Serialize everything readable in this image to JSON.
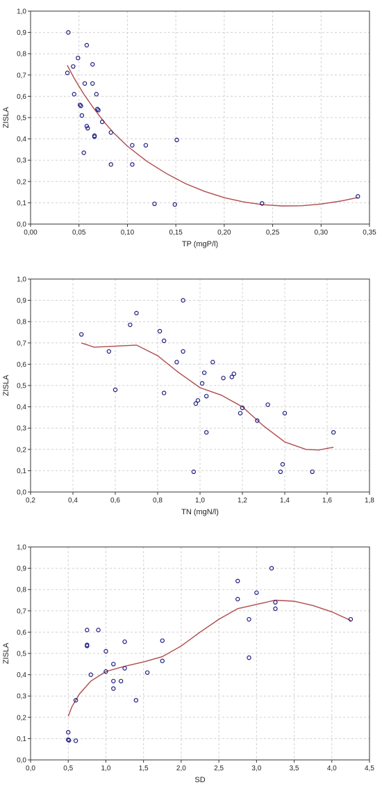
{
  "chart_data": [
    {
      "type": "scatter",
      "title": "",
      "xlabel": "TP (mgP/l)",
      "ylabel": "ZISLA",
      "xlim": [
        0.0,
        0.35
      ],
      "ylim": [
        0.0,
        1.0
      ],
      "xticks": [
        "0,00",
        "0,05",
        "0,10",
        "0,15",
        "0,20",
        "0,25",
        "0,30",
        "0,35"
      ],
      "yticks": [
        "0,0",
        "0,1",
        "0,2",
        "0,3",
        "0,4",
        "0,5",
        "0,6",
        "0,7",
        "0,8",
        "0,9",
        "1,0"
      ],
      "grid": true,
      "points": [
        [
          0.039,
          0.9
        ],
        [
          0.058,
          0.84
        ],
        [
          0.049,
          0.78
        ],
        [
          0.044,
          0.74
        ],
        [
          0.038,
          0.71
        ],
        [
          0.064,
          0.75
        ],
        [
          0.056,
          0.66
        ],
        [
          0.064,
          0.66
        ],
        [
          0.045,
          0.61
        ],
        [
          0.068,
          0.61
        ],
        [
          0.051,
          0.56
        ],
        [
          0.052,
          0.555
        ],
        [
          0.069,
          0.54
        ],
        [
          0.07,
          0.535
        ],
        [
          0.053,
          0.51
        ],
        [
          0.074,
          0.48
        ],
        [
          0.058,
          0.46
        ],
        [
          0.059,
          0.45
        ],
        [
          0.083,
          0.43
        ],
        [
          0.066,
          0.415
        ],
        [
          0.066,
          0.41
        ],
        [
          0.055,
          0.335
        ],
        [
          0.105,
          0.37
        ],
        [
          0.119,
          0.37
        ],
        [
          0.151,
          0.395
        ],
        [
          0.083,
          0.28
        ],
        [
          0.105,
          0.28
        ],
        [
          0.128,
          0.095
        ],
        [
          0.149,
          0.092
        ],
        [
          0.239,
          0.097
        ],
        [
          0.338,
          0.13
        ]
      ],
      "fit_line": [
        [
          0.038,
          0.745
        ],
        [
          0.045,
          0.685
        ],
        [
          0.055,
          0.61
        ],
        [
          0.065,
          0.545
        ],
        [
          0.075,
          0.485
        ],
        [
          0.085,
          0.432
        ],
        [
          0.1,
          0.366
        ],
        [
          0.12,
          0.295
        ],
        [
          0.14,
          0.238
        ],
        [
          0.16,
          0.19
        ],
        [
          0.18,
          0.153
        ],
        [
          0.2,
          0.124
        ],
        [
          0.22,
          0.104
        ],
        [
          0.24,
          0.091
        ],
        [
          0.26,
          0.085
        ],
        [
          0.28,
          0.086
        ],
        [
          0.3,
          0.094
        ],
        [
          0.32,
          0.108
        ],
        [
          0.338,
          0.125
        ]
      ]
    },
    {
      "type": "scatter",
      "title": "",
      "xlabel": "TN (mgN/l)",
      "ylabel": "ZISLA",
      "xlim": [
        0.2,
        1.8
      ],
      "ylim": [
        0.0,
        1.0
      ],
      "xticks": [
        "0,2",
        "0,4",
        "0,6",
        "0,8",
        "1,0",
        "1,2",
        "1,4",
        "1,6",
        "1,8"
      ],
      "yticks": [
        "0,0",
        "0,1",
        "0,2",
        "0,3",
        "0,4",
        "0,5",
        "0,6",
        "0,7",
        "0,8",
        "0,9",
        "1,0"
      ],
      "grid": true,
      "points": [
        [
          0.44,
          0.74
        ],
        [
          0.57,
          0.66
        ],
        [
          0.6,
          0.48
        ],
        [
          0.67,
          0.785
        ],
        [
          0.7,
          0.84
        ],
        [
          0.81,
          0.755
        ],
        [
          0.83,
          0.71
        ],
        [
          0.83,
          0.465
        ],
        [
          0.89,
          0.61
        ],
        [
          0.92,
          0.9
        ],
        [
          0.92,
          0.66
        ],
        [
          0.97,
          0.095
        ],
        [
          0.98,
          0.415
        ],
        [
          0.99,
          0.43
        ],
        [
          1.01,
          0.51
        ],
        [
          1.02,
          0.56
        ],
        [
          1.03,
          0.45
        ],
        [
          1.03,
          0.28
        ],
        [
          1.06,
          0.61
        ],
        [
          1.11,
          0.535
        ],
        [
          1.15,
          0.54
        ],
        [
          1.16,
          0.555
        ],
        [
          1.19,
          0.37
        ],
        [
          1.2,
          0.395
        ],
        [
          1.27,
          0.335
        ],
        [
          1.32,
          0.41
        ],
        [
          1.38,
          0.095
        ],
        [
          1.39,
          0.13
        ],
        [
          1.4,
          0.37
        ],
        [
          1.53,
          0.095
        ],
        [
          1.63,
          0.28
        ]
      ],
      "fit_line": [
        [
          0.44,
          0.7
        ],
        [
          0.5,
          0.68
        ],
        [
          0.6,
          0.685
        ],
        [
          0.7,
          0.69
        ],
        [
          0.8,
          0.64
        ],
        [
          0.9,
          0.56
        ],
        [
          1.0,
          0.49
        ],
        [
          1.1,
          0.455
        ],
        [
          1.2,
          0.4
        ],
        [
          1.3,
          0.31
        ],
        [
          1.4,
          0.235
        ],
        [
          1.5,
          0.2
        ],
        [
          1.56,
          0.197
        ],
        [
          1.63,
          0.21
        ]
      ]
    },
    {
      "type": "scatter",
      "title": "",
      "xlabel": "SD",
      "ylabel": "ZISLA",
      "xlim": [
        0.0,
        4.5
      ],
      "ylim": [
        0.0,
        1.0
      ],
      "xticks": [
        "0,0",
        "0,5",
        "1,0",
        "1,5",
        "2,0",
        "2,5",
        "3,0",
        "3,5",
        "4,0",
        "4,5"
      ],
      "yticks": [
        "0,0",
        "0,1",
        "0,2",
        "0,3",
        "0,4",
        "0,5",
        "0,6",
        "0,7",
        "0,8",
        "0,9",
        "1,0"
      ],
      "grid": true,
      "points": [
        [
          0.5,
          0.13
        ],
        [
          0.5,
          0.095
        ],
        [
          0.51,
          0.092
        ],
        [
          0.6,
          0.09
        ],
        [
          0.6,
          0.28
        ],
        [
          0.75,
          0.61
        ],
        [
          0.75,
          0.54
        ],
        [
          0.75,
          0.535
        ],
        [
          0.8,
          0.4
        ],
        [
          0.9,
          0.61
        ],
        [
          1.0,
          0.51
        ],
        [
          1.0,
          0.415
        ],
        [
          1.1,
          0.45
        ],
        [
          1.1,
          0.37
        ],
        [
          1.1,
          0.335
        ],
        [
          1.2,
          0.37
        ],
        [
          1.25,
          0.555
        ],
        [
          1.25,
          0.43
        ],
        [
          1.4,
          0.28
        ],
        [
          1.55,
          0.41
        ],
        [
          1.75,
          0.56
        ],
        [
          1.75,
          0.465
        ],
        [
          2.75,
          0.84
        ],
        [
          2.75,
          0.755
        ],
        [
          2.9,
          0.66
        ],
        [
          2.9,
          0.48
        ],
        [
          3.0,
          0.785
        ],
        [
          3.2,
          0.9
        ],
        [
          3.25,
          0.74
        ],
        [
          3.25,
          0.71
        ],
        [
          4.25,
          0.66
        ]
      ],
      "fit_line": [
        [
          0.5,
          0.205
        ],
        [
          0.55,
          0.25
        ],
        [
          0.65,
          0.31
        ],
        [
          0.8,
          0.37
        ],
        [
          1.0,
          0.415
        ],
        [
          1.25,
          0.44
        ],
        [
          1.5,
          0.46
        ],
        [
          1.75,
          0.485
        ],
        [
          2.0,
          0.535
        ],
        [
          2.25,
          0.6
        ],
        [
          2.5,
          0.66
        ],
        [
          2.75,
          0.71
        ],
        [
          3.0,
          0.73
        ],
        [
          3.25,
          0.75
        ],
        [
          3.5,
          0.745
        ],
        [
          3.75,
          0.725
        ],
        [
          4.0,
          0.695
        ],
        [
          4.25,
          0.655
        ]
      ]
    }
  ]
}
